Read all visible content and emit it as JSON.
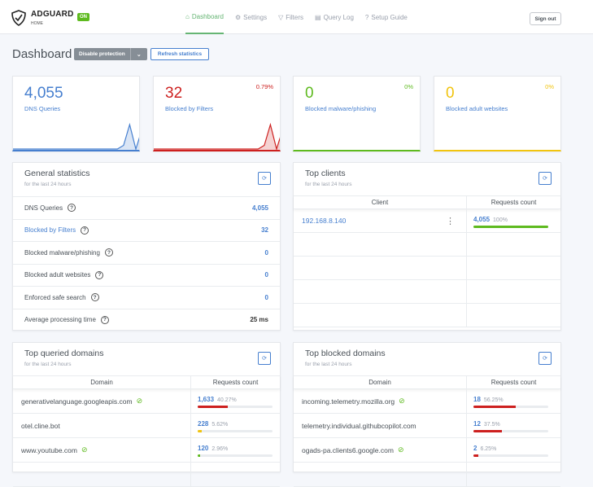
{
  "header": {
    "brand": "ADGUARD",
    "brand_sub": "HOME",
    "status_badge": "ON",
    "sign_out": "Sign out",
    "nav": [
      {
        "label": "Dashboard",
        "icon": "home-icon",
        "glyph": "⌂",
        "active": true
      },
      {
        "label": "Settings",
        "icon": "gear-icon",
        "glyph": "⚙"
      },
      {
        "label": "Filters",
        "icon": "filter-icon",
        "glyph": "▽"
      },
      {
        "label": "Query Log",
        "icon": "document-icon",
        "glyph": "▤"
      },
      {
        "label": "Setup Guide",
        "icon": "help-icon",
        "glyph": "?"
      }
    ]
  },
  "page": {
    "title": "Dashboard",
    "disable_protection": "Disable protection",
    "refresh_statistics": "Refresh statistics"
  },
  "colors": {
    "blue": "#467fcf",
    "red": "#cd201f",
    "green": "#5eba1f",
    "yellow": "#f1c40f"
  },
  "stats": [
    {
      "value": "4,055",
      "label": "DNS Queries",
      "percent": "",
      "color": "#467fcf",
      "spark": [
        0,
        0,
        0,
        0,
        0,
        0,
        0,
        0,
        0,
        0,
        0,
        0,
        0,
        0,
        0,
        0,
        0,
        0,
        0.15,
        1,
        0,
        0.8
      ]
    },
    {
      "value": "32",
      "label": "Blocked by Filters",
      "percent": "0.79%",
      "color": "#cd201f",
      "spark": [
        0,
        0,
        0,
        0,
        0,
        0,
        0,
        0,
        0,
        0,
        0,
        0,
        0,
        0,
        0,
        0,
        0,
        0,
        0.15,
        1,
        0,
        0.8
      ]
    },
    {
      "value": "0",
      "label": "Blocked malware/phishing",
      "percent": "0%",
      "color": "#5eba1f",
      "spark": []
    },
    {
      "value": "0",
      "label": "Blocked adult websites",
      "percent": "0%",
      "color": "#f1c40f",
      "spark": []
    }
  ],
  "general": {
    "title": "General statistics",
    "subtitle": "for the last 24 hours",
    "rows": [
      {
        "label": "DNS Queries",
        "value": "4,055",
        "link": false
      },
      {
        "label": "Blocked by Filters",
        "value": "32",
        "link": true
      },
      {
        "label": "Blocked malware/phishing",
        "value": "0",
        "link": false
      },
      {
        "label": "Blocked adult websites",
        "value": "0",
        "link": false
      },
      {
        "label": "Enforced safe search",
        "value": "0",
        "link": false
      },
      {
        "label": "Average processing time",
        "value": "25 ms",
        "link": false,
        "dark": true
      }
    ]
  },
  "clients": {
    "title": "Top clients",
    "subtitle": "for the last 24 hours",
    "col1": "Client",
    "col2": "Requests count",
    "rows": [
      {
        "name": "192.168.8.140",
        "count": "4,055",
        "percent": "100%",
        "pct": 100,
        "color": "#5eba1f"
      }
    ]
  },
  "queried": {
    "title": "Top queried domains",
    "subtitle": "for the last 24 hours",
    "col1": "Domain",
    "col2": "Requests count",
    "rows": [
      {
        "name": "generativelanguage.googleapis.com",
        "tracker": true,
        "count": "1,633",
        "percent": "40.27%",
        "pct": 40.27,
        "color": "#cd201f"
      },
      {
        "name": "otel.cline.bot",
        "tracker": false,
        "count": "228",
        "percent": "5.62%",
        "pct": 5.62,
        "color": "#f1c40f"
      },
      {
        "name": "www.youtube.com",
        "tracker": true,
        "count": "120",
        "percent": "2.96%",
        "pct": 2.96,
        "color": "#5eba1f"
      }
    ]
  },
  "blocked": {
    "title": "Top blocked domains",
    "subtitle": "for the last 24 hours",
    "col1": "Domain",
    "col2": "Requests count",
    "rows": [
      {
        "name": "incoming.telemetry.mozilla.org",
        "tracker": true,
        "count": "18",
        "percent": "56.25%",
        "pct": 56.25,
        "color": "#cd201f"
      },
      {
        "name": "telemetry.individual.githubcopilot.com",
        "tracker": false,
        "count": "12",
        "percent": "37.5%",
        "pct": 37.5,
        "color": "#cd201f"
      },
      {
        "name": "ogads-pa.clients6.google.com",
        "tracker": true,
        "count": "2",
        "percent": "6.25%",
        "pct": 6.25,
        "color": "#cd201f"
      }
    ]
  }
}
